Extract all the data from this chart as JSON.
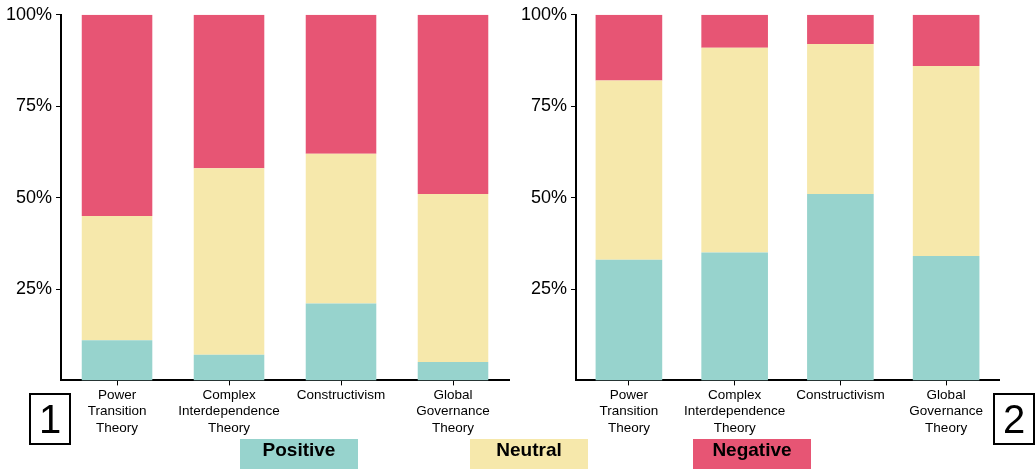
{
  "chart_data": [
    {
      "type": "bar",
      "stacked": true,
      "categories": [
        "Power Transition Theory",
        "Complex Interdependence Theory",
        "Constructivism",
        "Global Governance Theory"
      ],
      "series": [
        {
          "name": "Positive",
          "color": "#97d3cd",
          "values": [
            11,
            7,
            21,
            5
          ]
        },
        {
          "name": "Neutral",
          "color": "#f6e8ab",
          "values": [
            34,
            51,
            41,
            46
          ]
        },
        {
          "name": "Negative",
          "color": "#e75574",
          "values": [
            55,
            42,
            38,
            49
          ]
        }
      ],
      "ylim": [
        0,
        100
      ],
      "yticks": [
        {
          "value": 25,
          "label": "25%"
        },
        {
          "value": 50,
          "label": "50%"
        },
        {
          "value": 75,
          "label": "75%"
        },
        {
          "value": 100,
          "label": "100%"
        }
      ],
      "legend": "bottom",
      "annotations": [
        "1"
      ]
    },
    {
      "type": "bar",
      "stacked": true,
      "categories": [
        "Power Transition Theory",
        "Complex Interdependence Theory",
        "Constructivism",
        "Global Governance Theory"
      ],
      "series": [
        {
          "color": "#97d3cd",
          "values": [
            33,
            35,
            51,
            34
          ]
        },
        {
          "color": "#f6e8ab",
          "values": [
            49,
            56,
            41,
            52
          ]
        },
        {
          "color": "#e75574",
          "values": [
            18,
            9,
            8,
            14
          ]
        }
      ],
      "ylim": [
        0,
        100
      ],
      "yticks": [
        {
          "value": 25,
          "label": "25%"
        },
        {
          "value": 50,
          "label": "50%"
        },
        {
          "value": 75,
          "label": "75%"
        },
        {
          "value": 100,
          "label": "100%"
        }
      ],
      "annotations": [
        "2"
      ]
    }
  ]
}
